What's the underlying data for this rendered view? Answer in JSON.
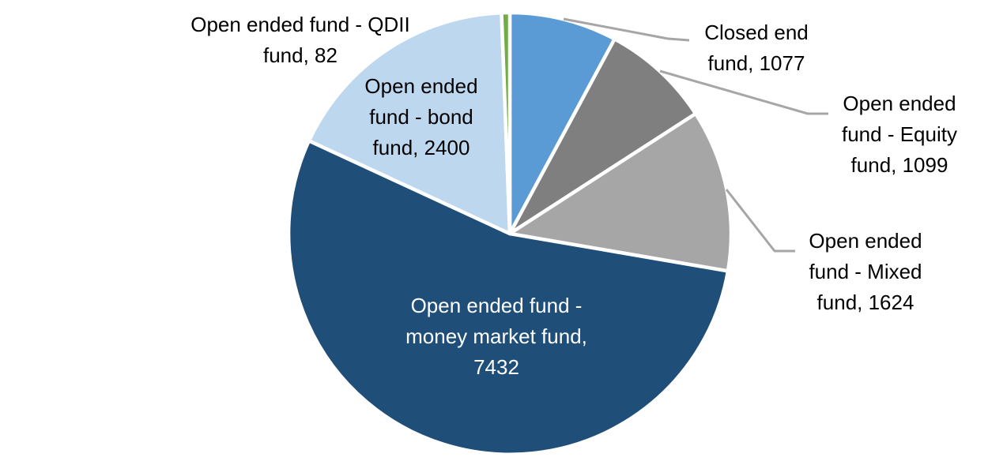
{
  "chart_data": {
    "type": "pie",
    "title": "",
    "direction": "clockwise",
    "start_angle_deg": 0,
    "legend": "none",
    "label_format": "category name, value",
    "slices": [
      {
        "key": "closed-end-fund",
        "label": "Closed end fund",
        "value": 1077,
        "color": "#5B9BD5",
        "text_color": "#000000",
        "label_placement": "outside-leader",
        "display": "Closed end\nfund, 1077"
      },
      {
        "key": "equity-fund",
        "label": "Open ended fund - Equity fund",
        "value": 1099,
        "color": "#7F7F7F",
        "text_color": "#000000",
        "label_placement": "outside-leader",
        "display": "Open ended\nfund - Equity\nfund, 1099"
      },
      {
        "key": "mixed-fund",
        "label": "Open ended fund - Mixed fund",
        "value": 1624,
        "color": "#A6A6A6",
        "text_color": "#000000",
        "label_placement": "outside-leader",
        "display": "Open ended\nfund - Mixed\nfund, 1624"
      },
      {
        "key": "money-market-fund",
        "label": "Open ended fund - money market fund",
        "value": 7432,
        "color": "#1F4E79",
        "text_color": "#FFFFFF",
        "label_placement": "inside",
        "display": "Open ended fund -\nmoney market fund,\n7432"
      },
      {
        "key": "bond-fund",
        "label": "Open ended fund - bond fund",
        "value": 2400,
        "color": "#BDD7EE",
        "text_color": "#000000",
        "label_placement": "inside",
        "display": "Open ended\nfund - bond\nfund, 2400"
      },
      {
        "key": "qdii-fund",
        "label": "Open ended fund - QDII fund",
        "value": 82,
        "color": "#70AD47",
        "text_color": "#000000",
        "label_placement": "outside",
        "display": "Open ended fund - QDII\nfund, 82"
      }
    ],
    "slice_border_color": "#FFFFFF",
    "leader_line_color": "#A6A6A6",
    "background_color": "#FFFFFF"
  }
}
